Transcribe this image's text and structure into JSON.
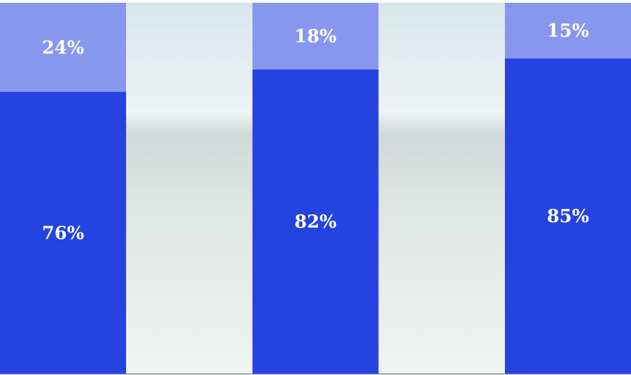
{
  "chart_data": {
    "type": "bar",
    "stacked": true,
    "categories": [
      null,
      null,
      null
    ],
    "series": [
      {
        "color": "#2443e0",
        "values": [
          76,
          82,
          85
        ],
        "value_labels": [
          "76%",
          "82%",
          "85%"
        ]
      },
      {
        "color": "#8797ee",
        "values": [
          24,
          18,
          15
        ],
        "value_labels": [
          "24%",
          "18%",
          "15%"
        ]
      }
    ],
    "ylim": [
      0,
      100
    ]
  }
}
